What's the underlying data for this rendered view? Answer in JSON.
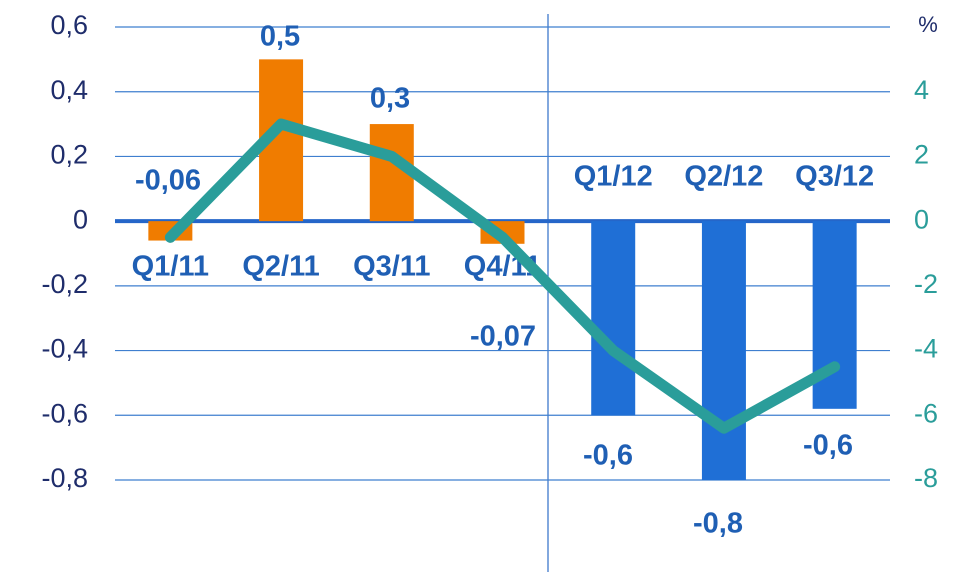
{
  "chart_data": {
    "type": "bar",
    "y2label": "%",
    "categories": [
      "Q1/11",
      "Q2/11",
      "Q3/11",
      "Q4/11",
      "Q1/12",
      "Q2/12",
      "Q3/12"
    ],
    "series": [
      {
        "type": "bar",
        "colors": [
          "#f07c00",
          "#f07c00",
          "#f07c00",
          "#f07c00",
          "#1f6fd6",
          "#1f6fd6",
          "#1f6fd6"
        ],
        "values": [
          -0.06,
          0.5,
          0.3,
          -0.07,
          -0.6,
          -0.8,
          -0.58
        ],
        "value_labels": [
          "-0,06",
          "0,5",
          "0,3",
          "-0,07",
          "-0,6",
          "-0,8",
          "-0,6"
        ]
      },
      {
        "type": "line",
        "axis": "y2",
        "color": "#2a9d9a",
        "values": [
          -0.5,
          3.0,
          2.0,
          -0.5,
          -4.0,
          -6.4,
          -4.5
        ]
      }
    ],
    "ylim": [
      -0.8,
      0.6
    ],
    "yticks": [
      {
        "value": 0.6,
        "label": "0,6"
      },
      {
        "value": 0.4,
        "label": "0,4"
      },
      {
        "value": 0.2,
        "label": "0,2"
      },
      0,
      {
        "value": -0.2,
        "label": "-0,2"
      },
      {
        "value": -0.4,
        "label": "-0,4"
      },
      {
        "value": -0.6,
        "label": "-0,6"
      },
      {
        "value": -0.8,
        "label": "-0,8"
      }
    ],
    "y2lim": [
      -8,
      6
    ],
    "y2ticks": [
      4,
      2,
      0,
      -2,
      -4,
      -6,
      -8
    ],
    "grid": true
  }
}
